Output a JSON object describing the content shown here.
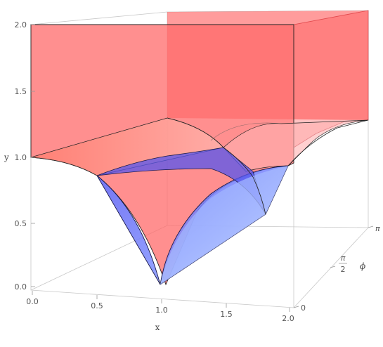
{
  "chart_data": {
    "type": "surface3d",
    "title": "",
    "axes": {
      "x": {
        "label": "x",
        "range": [
          0,
          2
        ],
        "ticks": [
          "0.0",
          "0.5",
          "1.0",
          "1.5",
          "2.0"
        ]
      },
      "y": {
        "label": "y",
        "range": [
          0,
          2
        ],
        "ticks": [
          "0.0",
          "0.5",
          "1.0",
          "1.5",
          "2.0"
        ]
      },
      "phi": {
        "label": "ϕ",
        "range_note": "0 to π",
        "ticks": [
          {
            "text": "0"
          },
          {
            "num": "π",
            "den": "2"
          },
          {
            "text": "π"
          }
        ]
      }
    },
    "surfaces": [
      {
        "name": "red-region",
        "description_color": "#ff5a5a",
        "y_range": [
          1.0,
          2.0
        ],
        "x_range": [
          0,
          2
        ],
        "phi_range": [
          0,
          3.14159
        ]
      },
      {
        "name": "blue-region",
        "description_color": "#6a6aff",
        "y_range": [
          0.0,
          1.0
        ],
        "x_range": [
          0,
          2
        ],
        "phi_range": [
          0,
          3.14159
        ]
      }
    ],
    "boundary_curve": "y = 1 - sqrt(1 - (1 - x)^2)  (circular arcs meeting at x = 1, y = 0)",
    "grid": false,
    "colors": {
      "red_fill": "#ff5a5a",
      "red_edge": "#c0454f",
      "blue_fill": "#6b6bff",
      "blue_light": "#a9c3ff",
      "edge": "#222222"
    }
  }
}
